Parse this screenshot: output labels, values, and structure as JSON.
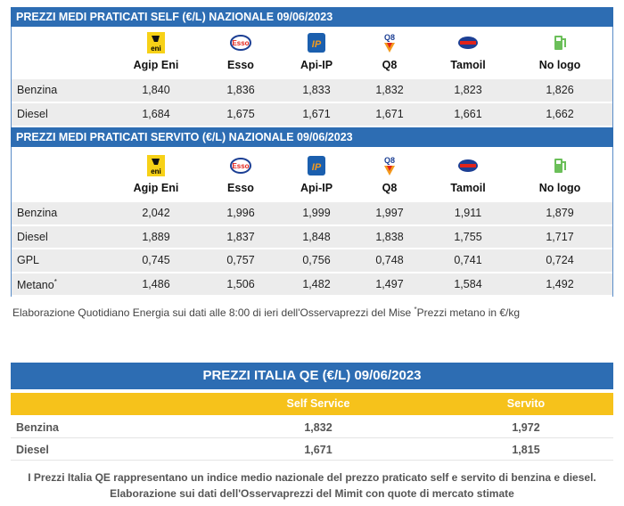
{
  "self": {
    "title": "PREZZI MEDI PRATICATI SELF (€/L) NAZIONALE 09/06/2023",
    "brands": [
      "Agip Eni",
      "Esso",
      "Api-IP",
      "Q8",
      "Tamoil",
      "No logo"
    ],
    "rows": [
      {
        "label": "Benzina",
        "values": [
          "1,840",
          "1,836",
          "1,833",
          "1,832",
          "1,823",
          "1,826"
        ]
      },
      {
        "label": "Diesel",
        "values": [
          "1,684",
          "1,675",
          "1,671",
          "1,671",
          "1,661",
          "1,662"
        ]
      }
    ]
  },
  "servito": {
    "title": "PREZZI MEDI PRATICATI SERVITO (€/L) NAZIONALE 09/06/2023",
    "brands": [
      "Agip Eni",
      "Esso",
      "Api-IP",
      "Q8",
      "Tamoil",
      "No logo"
    ],
    "rows": [
      {
        "label": "Benzina",
        "values": [
          "2,042",
          "1,996",
          "1,999",
          "1,997",
          "1,911",
          "1,879"
        ]
      },
      {
        "label": "Diesel",
        "values": [
          "1,889",
          "1,837",
          "1,848",
          "1,838",
          "1,755",
          "1,717"
        ]
      },
      {
        "label": "GPL",
        "values": [
          "0,745",
          "0,757",
          "0,756",
          "0,748",
          "0,741",
          "0,724"
        ]
      },
      {
        "label": "Metano",
        "marker": "*",
        "values": [
          "1,486",
          "1,506",
          "1,482",
          "1,497",
          "1,584",
          "1,492"
        ]
      }
    ]
  },
  "note": {
    "text": "Elaborazione Quotidiano Energia sui dati alle 8:00 di ieri dell'Osservaprezzi del Mise ",
    "marker": "*",
    "tail": "Prezzi metano in €/kg"
  },
  "qe": {
    "title": "PREZZI ITALIA QE (€/L) 09/06/2023",
    "columns": [
      "Self Service",
      "Servito"
    ],
    "rows": [
      {
        "label": "Benzina",
        "values": [
          "1,832",
          "1,972"
        ]
      },
      {
        "label": "Diesel",
        "values": [
          "1,671",
          "1,815"
        ]
      }
    ],
    "footnotes": [
      "I Prezzi Italia QE rappresentano un indice medio nazionale del prezzo praticato self e servito di benzina e diesel.",
      "Elaborazione sui dati dell'Osservaprezzi del Mimit con quote di mercato stimate"
    ]
  }
}
